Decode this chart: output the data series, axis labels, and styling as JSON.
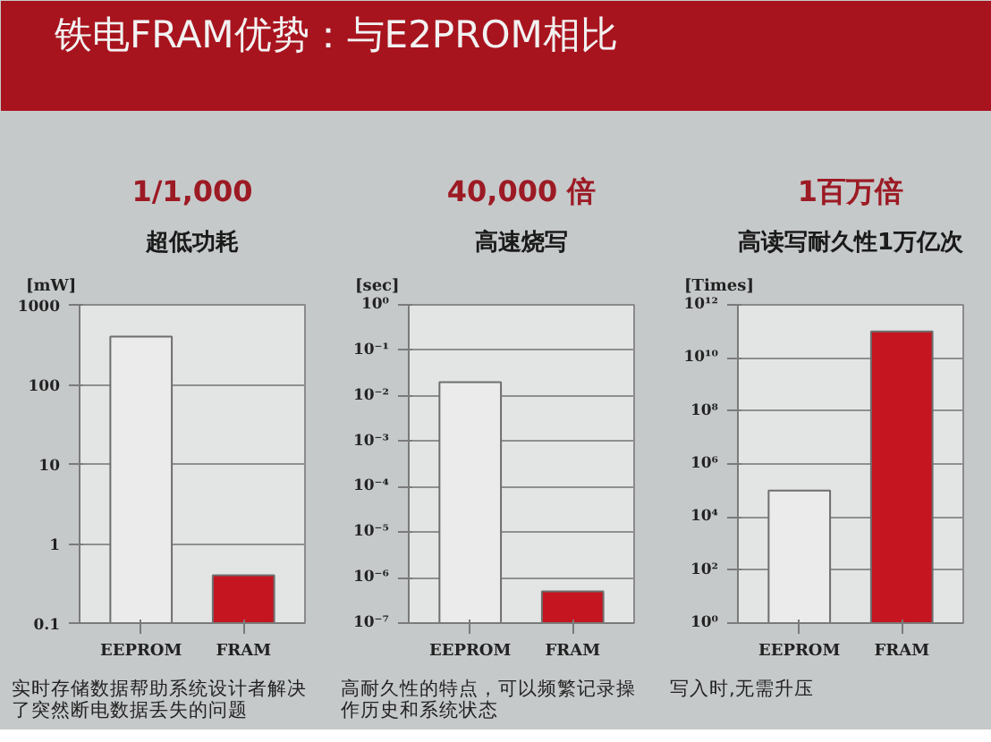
{
  "chart_data": [
    {
      "type": "other",
      "title": "铁电FRAM优势：与E2PROM相比"
    },
    {
      "type": "bar",
      "title": "1/1,000",
      "subtitle": "超低功耗",
      "ylabel": "[mW]",
      "categories": [
        "EEPROM",
        "FRAM"
      ],
      "values": [
        400,
        0.4
      ],
      "colors": [
        "#ebebeb",
        "#c41520"
      ],
      "log": true,
      "ylim": [
        0.1,
        1000
      ],
      "yticks": [
        0.1,
        1,
        10,
        100,
        1000
      ],
      "grid": "y",
      "annotations": [
        "实时存储数据帮助系统设计者解决了突然断电数据丢失的问题"
      ]
    },
    {
      "type": "bar",
      "title": "40,000 倍",
      "subtitle": "高速烧写",
      "ylabel": "[sec]",
      "categories": [
        "EEPROM",
        "FRAM"
      ],
      "values": [
        0.02,
        5e-07
      ],
      "colors": [
        "#ebebeb",
        "#c41520"
      ],
      "log": true,
      "ylim": [
        1e-07,
        1
      ],
      "yticks": [
        {
          "value": 1e-07,
          "label": "10⁻⁷"
        },
        {
          "value": 1e-06,
          "label": "10⁻⁶"
        },
        {
          "value": 1e-05,
          "label": "10⁻⁵"
        },
        {
          "value": 0.0001,
          "label": "10⁻⁴"
        },
        {
          "value": 0.001,
          "label": "10⁻³"
        },
        {
          "value": 0.01,
          "label": "10⁻²"
        },
        {
          "value": 0.1,
          "label": "10⁻¹"
        },
        {
          "value": 1,
          "label": "10⁰"
        }
      ],
      "grid": "y",
      "annotations": [
        "高耐久性的特点，可以频繁记录操作历史和系统状态"
      ]
    },
    {
      "type": "bar",
      "title": "1百万倍",
      "subtitle": "高读写耐久性1万亿次",
      "ylabel": "[Times]",
      "categories": [
        "EEPROM",
        "FRAM"
      ],
      "values": [
        100000.0,
        100000000000.0
      ],
      "colors": [
        "#ebebeb",
        "#c41520"
      ],
      "log": true,
      "ylim": [
        1,
        1000000000000.0
      ],
      "yticks": [
        {
          "value": 1,
          "label": "10⁰"
        },
        {
          "value": 100,
          "label": "10²"
        },
        {
          "value": 10000.0,
          "label": "10⁴"
        },
        {
          "value": 1000000.0,
          "label": "10⁶"
        },
        {
          "value": 100000000.0,
          "label": "10⁸"
        },
        {
          "value": 10000000000.0,
          "label": "10¹⁰"
        },
        {
          "value": 1000000000000.0,
          "label": "10¹²"
        }
      ],
      "grid": "y",
      "annotations": [
        "写入时,无需升压"
      ]
    }
  ]
}
